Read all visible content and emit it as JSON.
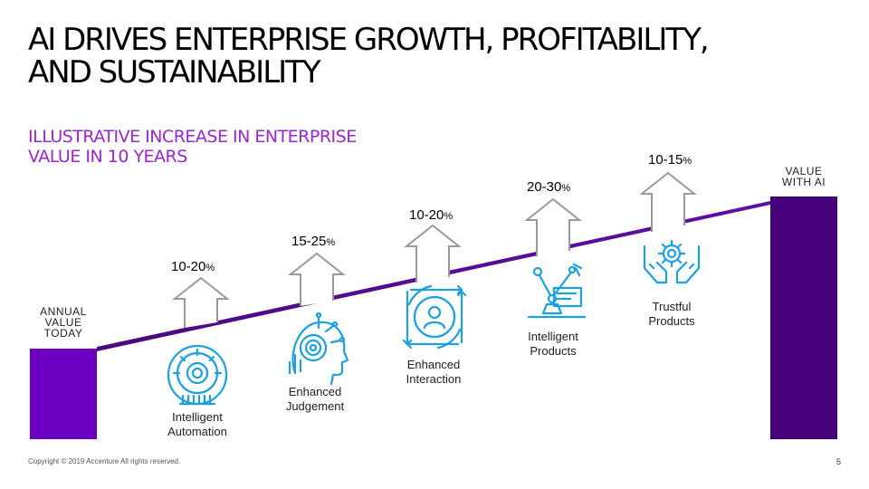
{
  "title": "AI DRIVES ENTERPRISE GROWTH, PROFITABILITY,\nAND SUSTAINABILITY",
  "subtitle": "ILLUSTRATIVE INCREASE IN ENTERPRISE\nVALUE IN 10 YEARS",
  "left_bar_label": "ANNUAL\nVALUE\nTODAY",
  "right_bar_label": "VALUE\nWITH AI",
  "steps": [
    {
      "value": "10-20",
      "unit": "%",
      "caption": "Intelligent\nAutomation",
      "icon": "gear-head-icon"
    },
    {
      "value": "15-25",
      "unit": "%",
      "caption": "Enhanced\nJudgement",
      "icon": "brain-head-icon"
    },
    {
      "value": "10-20",
      "unit": "%",
      "caption": "Enhanced\nInteraction",
      "icon": "person-arrows-icon"
    },
    {
      "value": "20-30",
      "unit": "%",
      "caption": "Intelligent\nProducts",
      "icon": "robot-arm-icon"
    },
    {
      "value": "10-15",
      "unit": "%",
      "caption": "Trustful\nProducts",
      "icon": "hands-gear-icon"
    }
  ],
  "colors": {
    "purple_bar": "#6b00c2",
    "dark_purple_bar": "#46007a",
    "subtitle": "#9b26d6",
    "icon_blue": "#1ba1e2",
    "arrow_grey": "#9a9a9a"
  },
  "footer": "Copyright © 2019 Accenture All rights reserved.",
  "page_number": "5"
}
